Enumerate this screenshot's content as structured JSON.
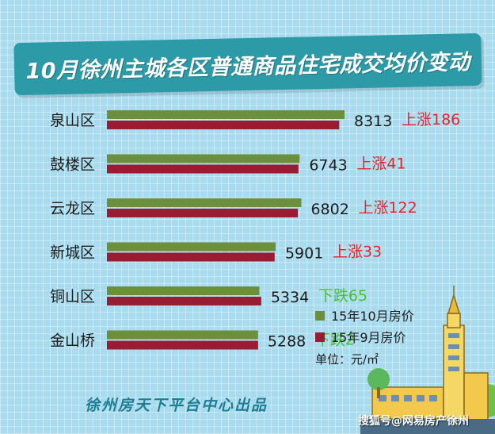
{
  "title": "10月徐州主城各区普通商品住宅成交均价变动",
  "colors": {
    "october": "#6b8f3a",
    "september": "#9a1b32",
    "up": "#e8202a",
    "down": "#45c12e",
    "banner": "#2d9aa8"
  },
  "chart_data": {
    "type": "bar",
    "orientation": "horizontal",
    "categories": [
      "泉山区",
      "鼓楼区",
      "云龙区",
      "新城区",
      "铜山区",
      "金山桥"
    ],
    "series": [
      {
        "name": "15年10月房价",
        "values": [
          8313,
          6743,
          6802,
          5901,
          5334,
          5288
        ]
      },
      {
        "name": "15年9月房价",
        "values": [
          8127,
          6702,
          6680,
          5868,
          5399,
          5290
        ]
      }
    ],
    "value_labels": [
      "8313",
      "6743",
      "6802",
      "5901",
      "5334",
      "5288"
    ],
    "change_labels": [
      "上涨186",
      "上涨41",
      "上涨122",
      "上涨33",
      "下跌65",
      "下跌2"
    ],
    "change_direction": [
      "up",
      "up",
      "up",
      "up",
      "down",
      "down"
    ],
    "legend_position": "bottom-right",
    "grid": false
  },
  "unit_label": "单位：元/㎡",
  "footer": "徐州房天下平台中心出品",
  "watermark": "搜狐号@网易房产徐州"
}
